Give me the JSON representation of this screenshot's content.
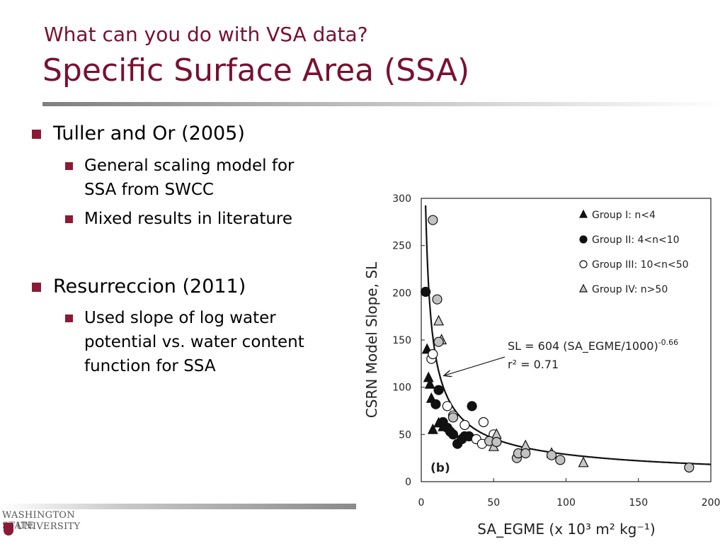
{
  "slide": {
    "title_line1": "What can you do with VSA data?",
    "title_line2": "Specific Surface Area (SSA)"
  },
  "bullets": [
    {
      "text": "Tuller and Or (2005)",
      "sub": [
        {
          "lines": [
            "General scaling model for",
            "SSA from SWCC"
          ]
        },
        {
          "lines": [
            "Mixed results in literature"
          ]
        }
      ]
    },
    {
      "text": "Resurreccion (2011)",
      "sub": [
        {
          "lines": [
            "Used slope of log water",
            "potential vs. water content",
            "function for SSA"
          ]
        }
      ]
    }
  ],
  "footer": {
    "logo_line1": "WASHINGTON STATE",
    "logo_line2": "UNIVERSITY"
  },
  "chart_data": {
    "type": "scatter",
    "panel_label": "(b)",
    "xlabel": "SA_EGME (x 10³ m² kg⁻¹)",
    "ylabel": "CSRN Model Slope, SL",
    "xlim": [
      0,
      200
    ],
    "ylim": [
      0,
      300
    ],
    "xticks": [
      0,
      50,
      100,
      150,
      200
    ],
    "yticks": [
      0,
      50,
      100,
      150,
      200,
      250,
      300
    ],
    "grid": false,
    "legend_position": "top-right",
    "series": [
      {
        "name": "Group I: n<4",
        "marker": "triangle-filled",
        "points": [
          [
            4,
            140
          ],
          [
            5,
            110
          ],
          [
            6,
            103
          ],
          [
            7,
            88
          ],
          [
            8,
            55
          ],
          [
            12,
            62
          ],
          [
            15,
            58
          ]
        ]
      },
      {
        "name": "Group II: 4<n<10",
        "marker": "circle-filled",
        "points": [
          [
            3,
            201
          ],
          [
            10,
            82
          ],
          [
            12,
            97
          ],
          [
            15,
            63
          ],
          [
            18,
            57
          ],
          [
            20,
            53
          ],
          [
            22,
            50
          ],
          [
            25,
            40
          ],
          [
            28,
            45
          ],
          [
            30,
            48
          ],
          [
            33,
            48
          ],
          [
            35,
            80
          ]
        ]
      },
      {
        "name": "Group III: 10<n<50",
        "marker": "circle-open",
        "points": [
          [
            7,
            130
          ],
          [
            8,
            135
          ],
          [
            18,
            80
          ],
          [
            22,
            70
          ],
          [
            30,
            60
          ],
          [
            38,
            45
          ],
          [
            42,
            40
          ],
          [
            43,
            63
          ],
          [
            50,
            50
          ]
        ]
      },
      {
        "name": "Group IV: n>50",
        "marker": "triangle-open",
        "points": [
          [
            12,
            170
          ],
          [
            14,
            150
          ],
          [
            50,
            37
          ],
          [
            52,
            50
          ],
          [
            72,
            38
          ],
          [
            90,
            30
          ],
          [
            112,
            20
          ]
        ]
      },
      {
        "name": "",
        "marker": "circle-gray",
        "points": [
          [
            8,
            277
          ],
          [
            11,
            193
          ],
          [
            12,
            148
          ],
          [
            22,
            68
          ],
          [
            47,
            43
          ],
          [
            52,
            42
          ],
          [
            66,
            25
          ],
          [
            67,
            30
          ],
          [
            72,
            30
          ],
          [
            90,
            28
          ],
          [
            96,
            23
          ],
          [
            185,
            15
          ]
        ]
      }
    ],
    "fit": {
      "label": "SL = 604 (SA_EGME/1000)",
      "exponent_label": "-0.66",
      "r2_label": "r² = 0.71",
      "coef": 604,
      "exponent": -0.66
    }
  }
}
